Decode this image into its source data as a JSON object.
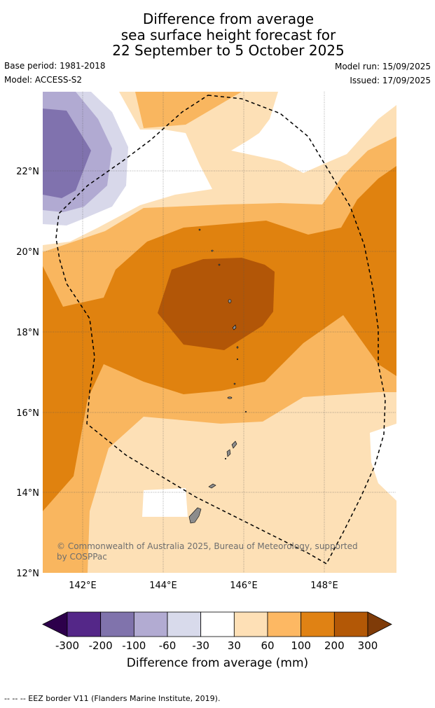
{
  "title": {
    "line1": "Difference from average",
    "line2": "sea surface height forecast for",
    "line3": "22 September to 5 October 2025"
  },
  "meta": {
    "base_period": "Base period: 1981-2018",
    "model": "Model: ACCESS-S2",
    "model_run": "Model run: 15/09/2025",
    "issued": "Issued: 17/09/2025"
  },
  "map": {
    "lat_labels": [
      "22°N",
      "20°N",
      "18°N",
      "16°N",
      "14°N",
      "12°N"
    ],
    "lon_labels": [
      "142°E",
      "144°E",
      "146°E",
      "148°E"
    ],
    "copyright_line1": "© Commonwealth of Australia 2025, Bureau of Meteorology, supported",
    "copyright_line2": "by COSPPac",
    "colors": {
      "ocean_base": "#fde0b6",
      "band_60_100": "#f9b65f",
      "band_100_200": "#e0820f",
      "band_200_300": "#b25607",
      "neutral": "#ffffff",
      "neg_30_60": "#d8d8ea",
      "neg_60_100": "#b1aad2",
      "neg_100_200": "#8072ae",
      "land": "#8c8c8c"
    }
  },
  "colorbar": {
    "ticks": [
      "-300",
      "-200",
      "-100",
      "-60",
      "-30",
      "30",
      "60",
      "100",
      "200",
      "300"
    ],
    "colors": [
      "#2d004b",
      "#542788",
      "#8073ac",
      "#b2abd2",
      "#d8daeb",
      "#ffffff",
      "#fee0b6",
      "#fdb863",
      "#e08214",
      "#b35806",
      "#7f3b08"
    ],
    "label": "Difference from average (mm)"
  },
  "footer": {
    "legend": "--  --  -- EEZ border V11 (Flanders Marine Institute, 2019)."
  }
}
